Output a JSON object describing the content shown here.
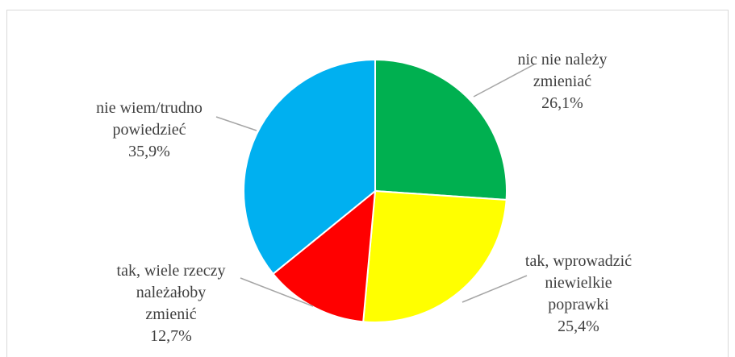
{
  "chart_data": {
    "type": "pie",
    "slices": [
      {
        "label_lines": [
          "nic nie należy",
          "zmieniać"
        ],
        "value": 26.1,
        "value_label": "26,1%",
        "color": "#00b050"
      },
      {
        "label_lines": [
          "tak, wprowadzić",
          "niewielkie",
          "poprawki"
        ],
        "value": 25.4,
        "value_label": "25,4%",
        "color": "#ffff00"
      },
      {
        "label_lines": [
          "tak, wiele rzeczy",
          "należałoby",
          "zmienić"
        ],
        "value": 12.7,
        "value_label": "12,7%",
        "color": "#ff0000"
      },
      {
        "label_lines": [
          "nie wiem/trudno",
          "powiedzieć"
        ],
        "value": 35.9,
        "value_label": "35,9%",
        "color": "#00b0f0"
      }
    ],
    "start_angle_deg": 0,
    "direction": "clockwise",
    "leader_line_color": "#a6a6a6"
  }
}
